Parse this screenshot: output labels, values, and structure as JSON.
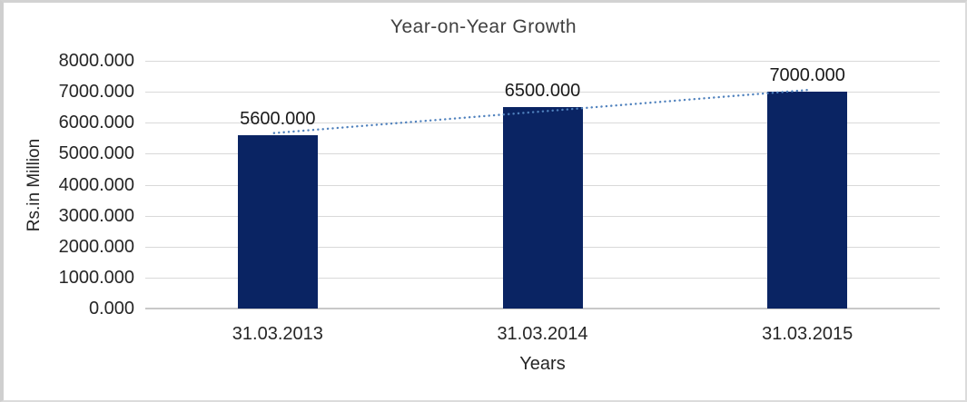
{
  "chart_data": {
    "type": "bar",
    "title": "Year-on-Year Growth",
    "xlabel": "Years",
    "ylabel": "Rs.in Million",
    "categories": [
      "31.03.2013",
      "31.03.2014",
      "31.03.2015"
    ],
    "values": [
      5600,
      6500,
      7000
    ],
    "data_labels": [
      "5600.000",
      "6500.000",
      "7000.000"
    ],
    "ylim": [
      0,
      8000
    ],
    "ytick_step": 1000,
    "ytick_labels": [
      "0.000",
      "1000.000",
      "2000.000",
      "3000.000",
      "4000.000",
      "5000.000",
      "6000.000",
      "7000.000",
      "8000.000"
    ],
    "grid": true,
    "legend": "none",
    "trendline": {
      "type": "linear",
      "style": "dotted"
    },
    "colors": {
      "bar": "#0A2463",
      "trendline": "#4F81BD",
      "gridline": "#D9D9D9",
      "axisline": "#C8C8C8",
      "title_text": "#404040",
      "label_text": "#262626"
    }
  }
}
